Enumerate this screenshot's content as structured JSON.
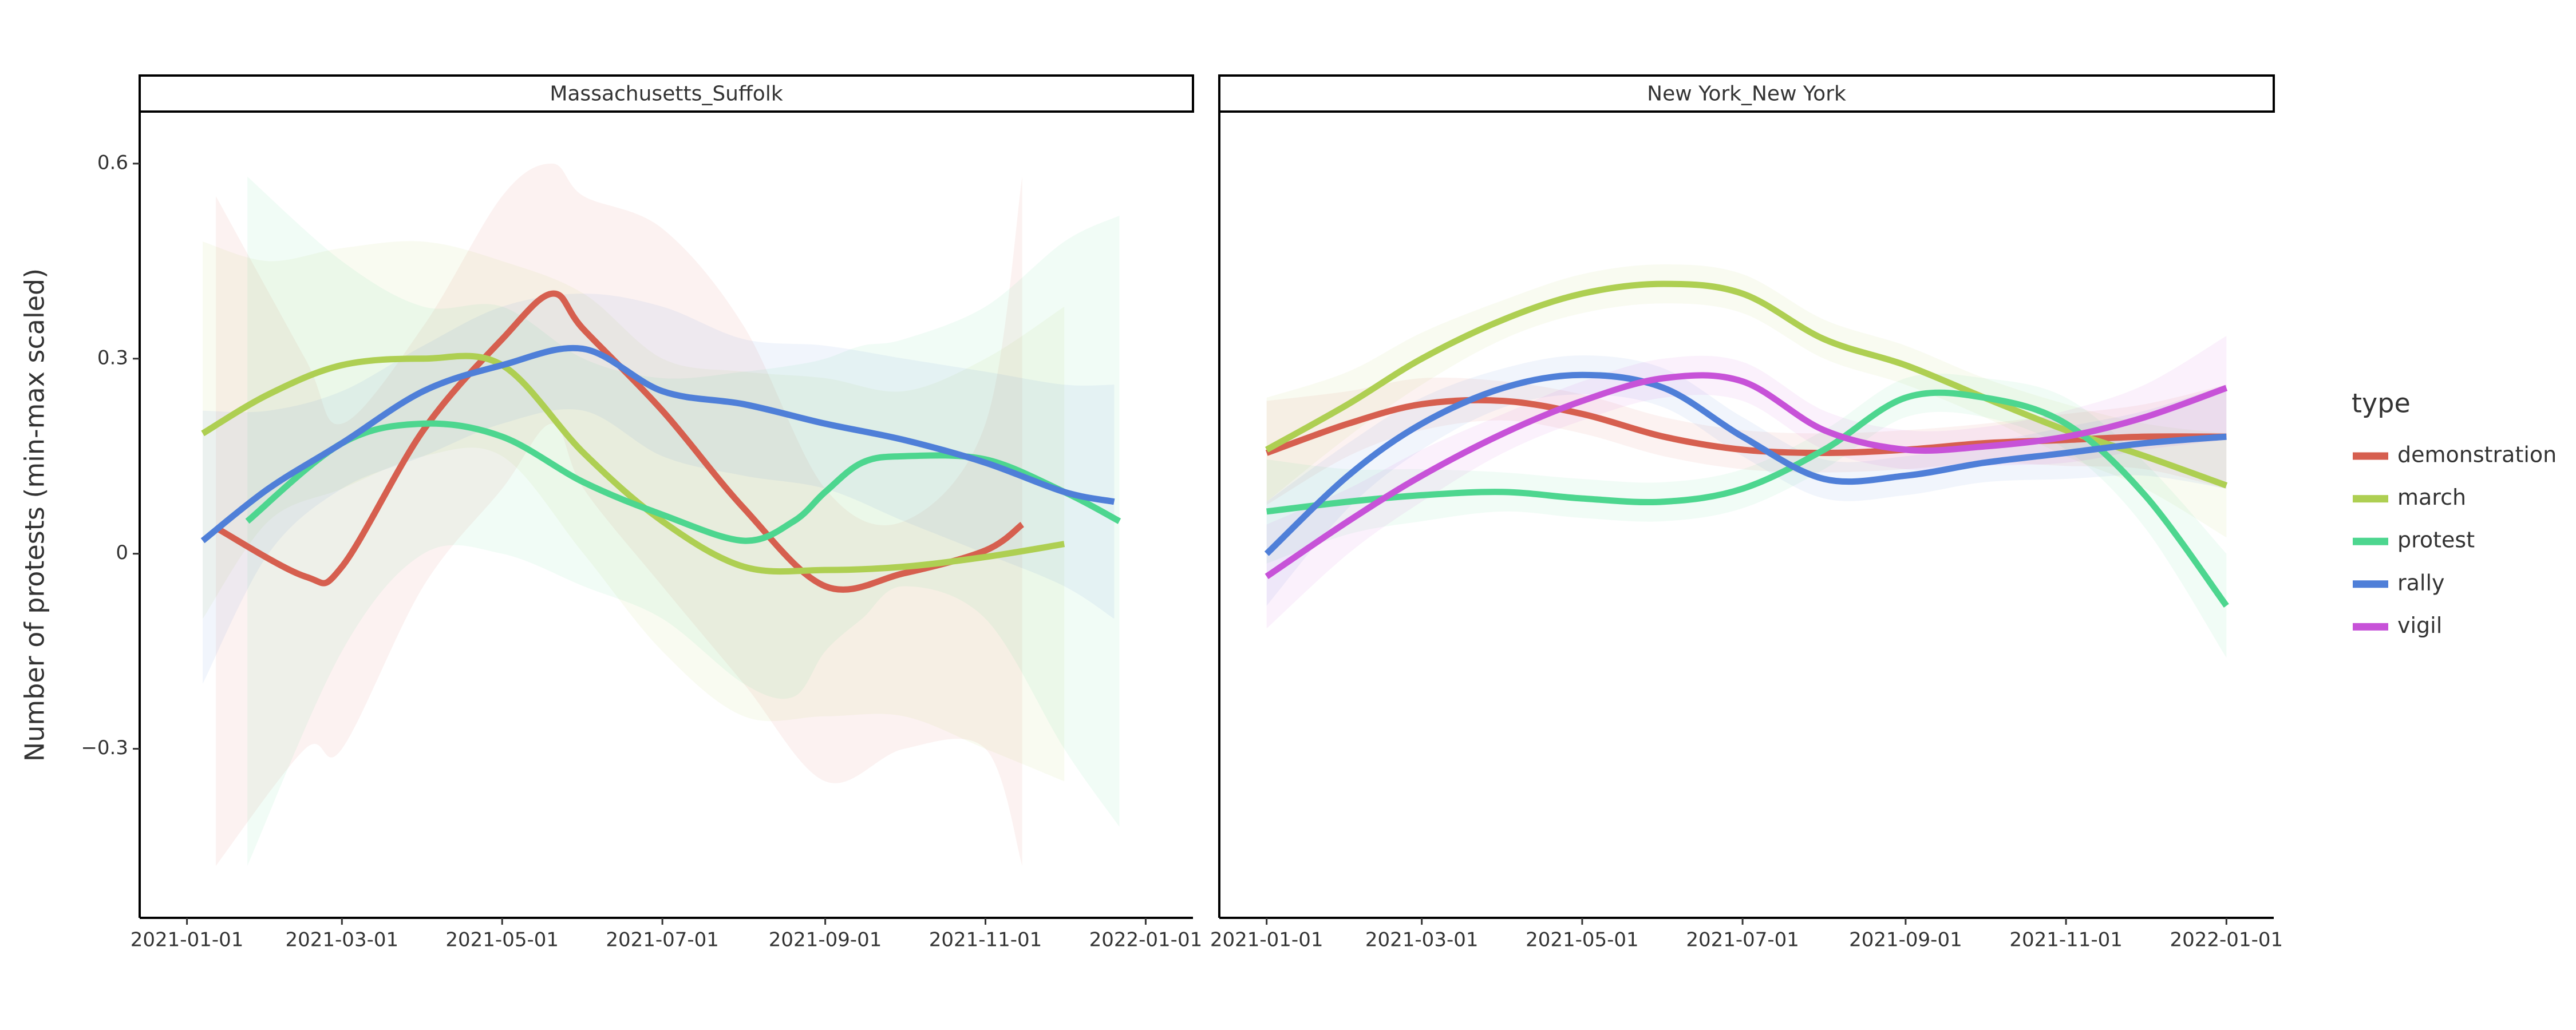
{
  "y_label": "Number of protests (min-max scaled)",
  "legend_title": "type",
  "chart_data": [
    {
      "type": "line",
      "title": "Massachusetts_Suffolk",
      "xlim": [
        "2020-12-14",
        "2022-01-19"
      ],
      "xticks": [
        "2021-01-01",
        "2021-03-01",
        "2021-05-01",
        "2021-07-01",
        "2021-09-01",
        "2021-11-01",
        "2022-01-01"
      ],
      "ylim": [
        -0.56,
        0.68
      ],
      "yticks": [
        {
          "value": -0.3,
          "label": "−0.3"
        },
        0,
        0.3,
        0.6
      ],
      "series": [
        {
          "name": "demonstration",
          "color": "#d65f4f",
          "x": [
            "2021-01-12",
            "2021-02-15",
            "2021-03-01",
            "2021-04-01",
            "2021-05-01",
            "2021-05-20",
            "2021-06-01",
            "2021-07-01",
            "2021-08-01",
            "2021-09-01",
            "2021-10-01",
            "2021-11-01",
            "2021-11-15"
          ],
          "values": [
            0.04,
            -0.035,
            -0.02,
            0.19,
            0.33,
            0.4,
            0.345,
            0.22,
            0.07,
            -0.05,
            -0.03,
            0.005,
            0.045
          ],
          "lower": [
            -0.48,
            -0.3,
            -0.3,
            -0.05,
            0.1,
            0.2,
            0.1,
            -0.05,
            -0.2,
            -0.35,
            -0.3,
            -0.3,
            -0.48
          ],
          "upper": [
            0.55,
            0.3,
            0.2,
            0.35,
            0.55,
            0.6,
            0.55,
            0.5,
            0.35,
            0.1,
            0.05,
            0.2,
            0.58
          ]
        },
        {
          "name": "march",
          "color": "#aecf52",
          "x": [
            "2021-01-07",
            "2021-02-01",
            "2021-03-01",
            "2021-04-01",
            "2021-05-01",
            "2021-06-01",
            "2021-07-01",
            "2021-08-01",
            "2021-09-01",
            "2021-10-01",
            "2021-11-01",
            "2021-12-01"
          ],
          "values": [
            0.185,
            0.245,
            0.29,
            0.3,
            0.29,
            0.155,
            0.05,
            -0.02,
            -0.025,
            -0.02,
            -0.005,
            0.015
          ],
          "lower": [
            -0.1,
            0.05,
            0.1,
            0.15,
            0.15,
            0.0,
            -0.15,
            -0.25,
            -0.25,
            -0.25,
            -0.3,
            -0.35
          ],
          "upper": [
            0.48,
            0.45,
            0.47,
            0.48,
            0.45,
            0.4,
            0.3,
            0.28,
            0.27,
            0.25,
            0.3,
            0.38
          ]
        },
        {
          "name": "protest",
          "color": "#4dd68f",
          "x": [
            "2021-01-24",
            "2021-03-01",
            "2021-04-01",
            "2021-05-01",
            "2021-06-01",
            "2021-07-01",
            "2021-08-01",
            "2021-08-20",
            "2021-09-01",
            "2021-09-15",
            "2021-10-01",
            "2021-11-01",
            "2021-12-01",
            "2021-12-22"
          ],
          "values": [
            0.05,
            0.17,
            0.2,
            0.18,
            0.11,
            0.06,
            0.02,
            0.05,
            0.095,
            0.14,
            0.15,
            0.145,
            0.095,
            0.05
          ],
          "lower": [
            -0.48,
            -0.15,
            0.0,
            0.0,
            -0.05,
            -0.1,
            -0.2,
            -0.22,
            -0.15,
            -0.1,
            -0.05,
            -0.1,
            -0.3,
            -0.42
          ],
          "upper": [
            0.58,
            0.45,
            0.38,
            0.38,
            0.3,
            0.27,
            0.28,
            0.29,
            0.3,
            0.32,
            0.33,
            0.38,
            0.48,
            0.52
          ]
        },
        {
          "name": "rally",
          "color": "#4f7fd8",
          "x": [
            "2021-01-07",
            "2021-02-01",
            "2021-03-01",
            "2021-04-01",
            "2021-05-01",
            "2021-06-01",
            "2021-07-01",
            "2021-08-01",
            "2021-09-01",
            "2021-10-01",
            "2021-11-01",
            "2021-12-01",
            "2021-12-20"
          ],
          "values": [
            0.02,
            0.1,
            0.17,
            0.25,
            0.29,
            0.315,
            0.25,
            0.23,
            0.2,
            0.175,
            0.14,
            0.095,
            0.08
          ],
          "lower": [
            -0.2,
            0.0,
            0.1,
            0.15,
            0.2,
            0.22,
            0.15,
            0.12,
            0.1,
            0.05,
            0.0,
            -0.05,
            -0.1
          ],
          "upper": [
            0.22,
            0.22,
            0.25,
            0.32,
            0.38,
            0.4,
            0.38,
            0.33,
            0.32,
            0.3,
            0.28,
            0.26,
            0.26
          ]
        }
      ]
    },
    {
      "type": "line",
      "title": "New York_New York",
      "xlim": [
        "2020-12-14",
        "2022-01-19"
      ],
      "xticks": [
        "2021-01-01",
        "2021-03-01",
        "2021-05-01",
        "2021-07-01",
        "2021-09-01",
        "2021-11-01",
        "2022-01-01"
      ],
      "ylim": [
        -0.56,
        0.68
      ],
      "x": [
        "2021-01-01",
        "2021-02-01",
        "2021-03-01",
        "2021-04-01",
        "2021-05-01",
        "2021-06-01",
        "2021-07-01",
        "2021-08-01",
        "2021-09-01",
        "2021-10-01",
        "2021-11-01",
        "2021-12-01",
        "2022-01-01"
      ],
      "series": [
        {
          "name": "demonstration",
          "color": "#d65f4f",
          "values": [
            0.155,
            0.2,
            0.23,
            0.235,
            0.215,
            0.18,
            0.16,
            0.155,
            0.16,
            0.17,
            0.175,
            0.18,
            0.18
          ],
          "lower": [
            0.075,
            0.15,
            0.19,
            0.205,
            0.185,
            0.15,
            0.13,
            0.125,
            0.13,
            0.14,
            0.135,
            0.13,
            0.1
          ],
          "upper": [
            0.235,
            0.25,
            0.27,
            0.265,
            0.245,
            0.21,
            0.19,
            0.185,
            0.19,
            0.2,
            0.215,
            0.23,
            0.26
          ]
        },
        {
          "name": "march",
          "color": "#aecf52",
          "values": [
            0.16,
            0.23,
            0.3,
            0.36,
            0.4,
            0.415,
            0.4,
            0.33,
            0.29,
            0.24,
            0.19,
            0.15,
            0.105
          ],
          "lower": [
            0.08,
            0.18,
            0.26,
            0.33,
            0.37,
            0.385,
            0.37,
            0.3,
            0.26,
            0.21,
            0.15,
            0.1,
            0.025
          ],
          "upper": [
            0.24,
            0.28,
            0.34,
            0.39,
            0.43,
            0.445,
            0.43,
            0.36,
            0.32,
            0.27,
            0.23,
            0.2,
            0.185
          ]
        },
        {
          "name": "protest",
          "color": "#4dd68f",
          "values": [
            0.065,
            0.08,
            0.09,
            0.095,
            0.085,
            0.08,
            0.1,
            0.16,
            0.24,
            0.24,
            0.2,
            0.09,
            -0.08
          ],
          "lower": [
            -0.015,
            0.03,
            0.05,
            0.065,
            0.055,
            0.05,
            0.07,
            0.13,
            0.21,
            0.21,
            0.16,
            0.04,
            -0.16
          ],
          "upper": [
            0.145,
            0.13,
            0.13,
            0.125,
            0.115,
            0.11,
            0.13,
            0.19,
            0.27,
            0.27,
            0.24,
            0.14,
            0.0
          ]
        },
        {
          "name": "rally",
          "color": "#4f7fd8",
          "values": [
            0.0,
            0.12,
            0.2,
            0.255,
            0.275,
            0.255,
            0.18,
            0.115,
            0.12,
            0.14,
            0.155,
            0.17,
            0.18
          ],
          "lower": [
            -0.08,
            0.07,
            0.16,
            0.225,
            0.245,
            0.225,
            0.15,
            0.085,
            0.09,
            0.11,
            0.115,
            0.12,
            0.1
          ],
          "upper": [
            0.08,
            0.17,
            0.24,
            0.285,
            0.305,
            0.285,
            0.21,
            0.145,
            0.15,
            0.17,
            0.195,
            0.22,
            0.26
          ]
        },
        {
          "name": "vigil",
          "color": "#c752d8",
          "values": [
            -0.035,
            0.05,
            0.12,
            0.185,
            0.235,
            0.27,
            0.265,
            0.19,
            0.16,
            0.165,
            0.18,
            0.21,
            0.255
          ],
          "lower": [
            -0.115,
            0.0,
            0.08,
            0.155,
            0.205,
            0.24,
            0.235,
            0.16,
            0.13,
            0.135,
            0.14,
            0.16,
            0.175
          ],
          "upper": [
            0.045,
            0.1,
            0.16,
            0.215,
            0.265,
            0.3,
            0.295,
            0.22,
            0.19,
            0.195,
            0.22,
            0.26,
            0.335
          ]
        }
      ]
    }
  ]
}
